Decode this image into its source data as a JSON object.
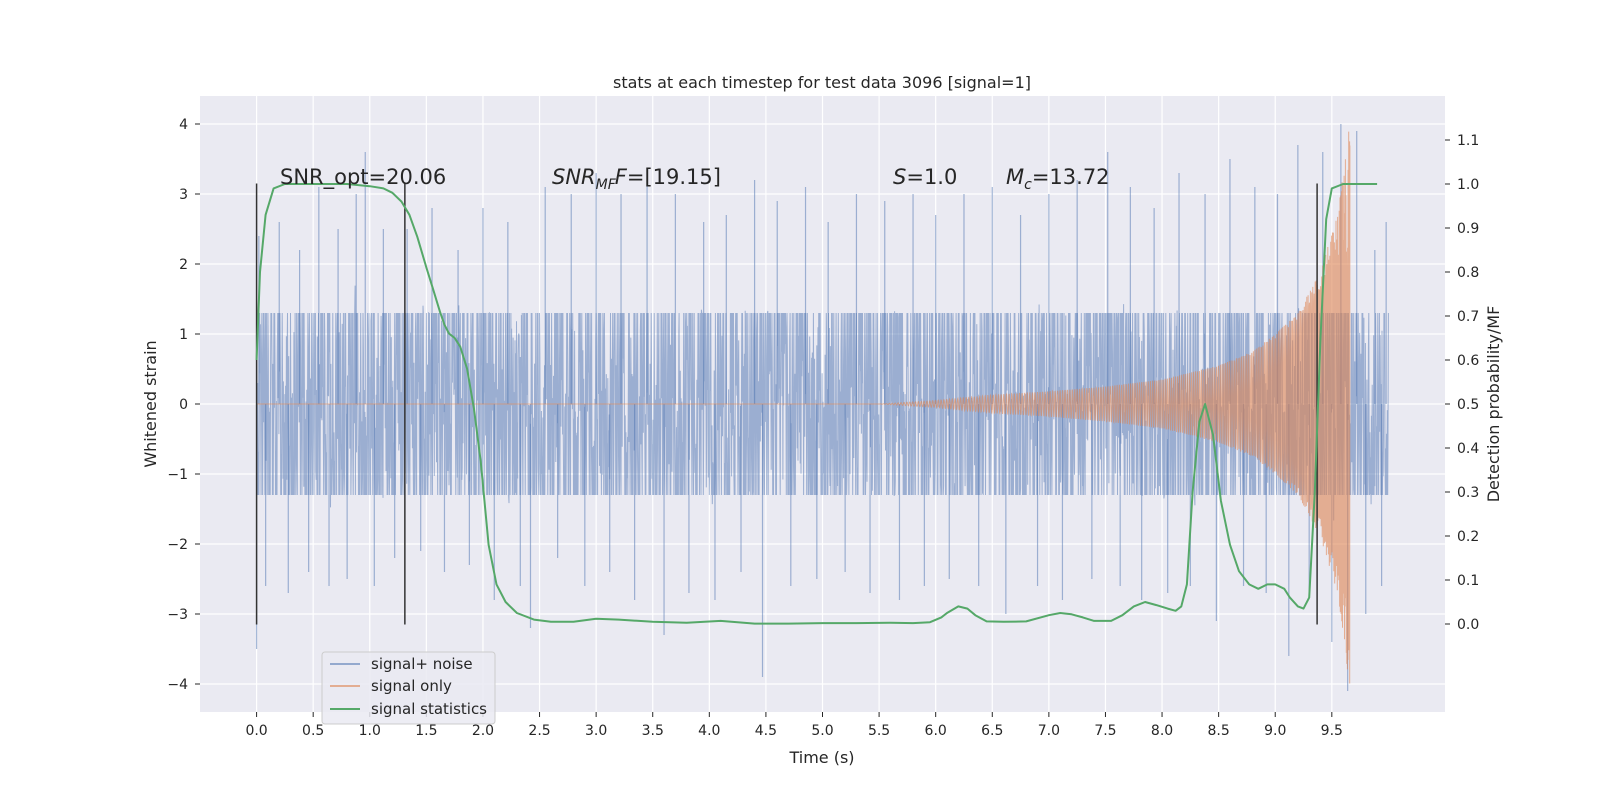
{
  "chart_data": {
    "type": "line",
    "title": "stats at each timestep for test data 3096 [signal=1]",
    "xlabel": "Time (s)",
    "ylabel": "Whitened strain",
    "ylabel_right": "Detection probability/MF",
    "xlim": [
      -0.5,
      10.5
    ],
    "ylim": [
      -4.4,
      4.4
    ],
    "ylim_right": [
      -0.2,
      1.2
    ],
    "xticks": [
      "0.0",
      "0.5",
      "1.0",
      "1.5",
      "2.0",
      "2.5",
      "3.0",
      "3.5",
      "4.0",
      "4.5",
      "5.0",
      "5.5",
      "6.0",
      "6.5",
      "7.0",
      "7.5",
      "8.0",
      "8.5",
      "9.0",
      "9.5"
    ],
    "yticks": [
      "4",
      "3",
      "2",
      "1",
      "0",
      "−1",
      "−2",
      "−3",
      "−4"
    ],
    "yticks_right": [
      "1.1",
      "1.0",
      "0.9",
      "0.8",
      "0.7",
      "0.6",
      "0.5",
      "0.4",
      "0.3",
      "0.2",
      "0.1",
      "0.0"
    ],
    "grid": true,
    "legend_position": "lower-left",
    "background": "#eaeaf2",
    "colors": {
      "noise": "#4c72b0",
      "signal": "#dd8452",
      "stats": "#55a868",
      "marker": "#333333"
    },
    "annotations": {
      "snr_opt": "SNR_opt=20.06",
      "snr_mf_main": "SNR",
      "snr_mf_sub": "MF",
      "snr_mf_rest": "=[19.15]",
      "s_main": "S",
      "s_rest": "=1.0",
      "mc_main": "M",
      "mc_sub": "c",
      "mc_rest": "=13.72"
    },
    "series": [
      {
        "name": "signal+ noise",
        "color": "#4c72b0",
        "note": "whitened strain spanning 0.0–10.0 s, amplitude mostly within ±1.3 with peaks up to ±4",
        "x_range": [
          0.0,
          10.0
        ],
        "envelope": [
          1.3,
          -1.3
        ],
        "peaks": [
          [
            0.0,
            -3.5
          ],
          [
            0.02,
            2.4
          ],
          [
            0.08,
            -2.6
          ],
          [
            0.2,
            2.6
          ],
          [
            0.28,
            -2.7
          ],
          [
            0.38,
            2.2
          ],
          [
            0.46,
            -2.4
          ],
          [
            0.55,
            3.1
          ],
          [
            0.64,
            -2.6
          ],
          [
            0.72,
            2.5
          ],
          [
            0.8,
            -2.5
          ],
          [
            0.88,
            3.0
          ],
          [
            0.96,
            3.6
          ],
          [
            1.04,
            -2.6
          ],
          [
            1.12,
            2.5
          ],
          [
            1.22,
            -2.2
          ],
          [
            1.33,
            2.5
          ],
          [
            1.45,
            -2.1
          ],
          [
            1.55,
            2.8
          ],
          [
            1.66,
            -2.4
          ],
          [
            1.78,
            2.2
          ],
          [
            1.88,
            -2.3
          ],
          [
            2.0,
            2.8
          ],
          [
            2.1,
            -2.8
          ],
          [
            2.22,
            2.6
          ],
          [
            2.33,
            -2.6
          ],
          [
            2.42,
            -3.2
          ],
          [
            2.55,
            3.1
          ],
          [
            2.66,
            -2.2
          ],
          [
            2.78,
            3.0
          ],
          [
            2.9,
            -2.6
          ],
          [
            3.0,
            3.3
          ],
          [
            3.12,
            -2.4
          ],
          [
            3.22,
            3.0
          ],
          [
            3.34,
            -2.8
          ],
          [
            3.45,
            3.2
          ],
          [
            3.6,
            -3.3
          ],
          [
            3.7,
            3.0
          ],
          [
            3.82,
            -2.7
          ],
          [
            3.95,
            2.6
          ],
          [
            4.05,
            -2.8
          ],
          [
            4.15,
            2.7
          ],
          [
            4.28,
            -2.4
          ],
          [
            4.4,
            3.2
          ],
          [
            4.47,
            -3.9
          ],
          [
            4.6,
            2.9
          ],
          [
            4.72,
            -2.6
          ],
          [
            4.85,
            3.1
          ],
          [
            4.95,
            -2.5
          ],
          [
            5.05,
            2.6
          ],
          [
            5.2,
            -2.4
          ],
          [
            5.3,
            3.0
          ],
          [
            5.42,
            -2.7
          ],
          [
            5.55,
            2.9
          ],
          [
            5.68,
            -2.8
          ],
          [
            5.8,
            3.0
          ],
          [
            5.9,
            -2.6
          ],
          [
            6.0,
            2.7
          ],
          [
            6.12,
            -2.5
          ],
          [
            6.25,
            3.0
          ],
          [
            6.38,
            -2.6
          ],
          [
            6.5,
            3.1
          ],
          [
            6.62,
            -3.0
          ],
          [
            6.75,
            2.7
          ],
          [
            6.9,
            -2.6
          ],
          [
            7.0,
            3.0
          ],
          [
            7.12,
            -2.8
          ],
          [
            7.25,
            3.2
          ],
          [
            7.38,
            -2.5
          ],
          [
            7.52,
            3.6
          ],
          [
            7.63,
            -2.6
          ],
          [
            7.72,
            3.1
          ],
          [
            7.82,
            -2.8
          ],
          [
            7.93,
            2.8
          ],
          [
            8.05,
            -2.7
          ],
          [
            8.15,
            3.3
          ],
          [
            8.25,
            -2.6
          ],
          [
            8.38,
            3.0
          ],
          [
            8.48,
            -3.1
          ],
          [
            8.6,
            3.5
          ],
          [
            8.72,
            -2.6
          ],
          [
            8.82,
            3.1
          ],
          [
            8.92,
            -2.7
          ],
          [
            9.02,
            3.0
          ],
          [
            9.12,
            -3.6
          ],
          [
            9.2,
            3.7
          ],
          [
            9.3,
            -2.7
          ],
          [
            9.42,
            3.6
          ],
          [
            9.5,
            -3.4
          ],
          [
            9.58,
            4.0
          ],
          [
            9.64,
            -4.1
          ],
          [
            9.72,
            3.9
          ],
          [
            9.8,
            -3.0
          ],
          [
            9.88,
            2.2
          ],
          [
            9.94,
            -2.6
          ],
          [
            9.98,
            2.6
          ]
        ]
      },
      {
        "name": "signal only",
        "color": "#dd8452",
        "note": "chirp waveform, amplitude growing from ~0 at 5.5 s to peak ~4 near 9.65 s, then ends",
        "x_range": [
          0.0,
          9.66
        ],
        "envelope": [
          [
            5.5,
            0.0
          ],
          [
            6.0,
            0.05
          ],
          [
            6.5,
            0.13
          ],
          [
            7.0,
            0.18
          ],
          [
            7.5,
            0.25
          ],
          [
            8.0,
            0.35
          ],
          [
            8.5,
            0.55
          ],
          [
            8.8,
            0.75
          ],
          [
            9.0,
            1.0
          ],
          [
            9.2,
            1.3
          ],
          [
            9.4,
            1.9
          ],
          [
            9.55,
            2.7
          ],
          [
            9.62,
            3.5
          ],
          [
            9.65,
            4.0
          ]
        ]
      },
      {
        "name": "signal statistics",
        "color": "#55a868",
        "x": [
          0.0,
          0.03,
          0.08,
          0.15,
          0.25,
          0.4,
          0.6,
          0.8,
          1.0,
          1.12,
          1.2,
          1.28,
          1.35,
          1.42,
          1.5,
          1.56,
          1.62,
          1.66,
          1.7,
          1.75,
          1.8,
          1.86,
          1.92,
          1.98,
          2.05,
          2.12,
          2.2,
          2.3,
          2.45,
          2.6,
          2.8,
          3.0,
          3.2,
          3.5,
          3.8,
          4.1,
          4.4,
          4.7,
          5.0,
          5.3,
          5.6,
          5.8,
          5.95,
          6.05,
          6.1,
          6.2,
          6.28,
          6.35,
          6.45,
          6.6,
          6.8,
          7.0,
          7.1,
          7.2,
          7.3,
          7.4,
          7.55,
          7.65,
          7.75,
          7.85,
          7.95,
          8.05,
          8.12,
          8.17,
          8.22,
          8.27,
          8.33,
          8.38,
          8.45,
          8.52,
          8.6,
          8.68,
          8.77,
          8.85,
          8.93,
          9.0,
          9.08,
          9.13,
          9.2,
          9.25,
          9.3,
          9.35,
          9.4,
          9.45,
          9.5,
          9.6,
          9.7,
          9.8,
          9.9
        ],
        "y": [
          0.6,
          0.8,
          0.93,
          0.99,
          1.0,
          1.0,
          1.0,
          1.0,
          0.995,
          0.99,
          0.98,
          0.96,
          0.93,
          0.88,
          0.81,
          0.76,
          0.71,
          0.68,
          0.66,
          0.65,
          0.63,
          0.58,
          0.49,
          0.37,
          0.18,
          0.09,
          0.05,
          0.025,
          0.01,
          0.005,
          0.005,
          0.012,
          0.01,
          0.005,
          0.003,
          0.007,
          0.001,
          0.001,
          0.002,
          0.002,
          0.003,
          0.002,
          0.004,
          0.015,
          0.025,
          0.04,
          0.035,
          0.02,
          0.006,
          0.005,
          0.006,
          0.02,
          0.025,
          0.022,
          0.015,
          0.007,
          0.007,
          0.02,
          0.04,
          0.05,
          0.043,
          0.035,
          0.03,
          0.04,
          0.09,
          0.3,
          0.46,
          0.5,
          0.43,
          0.28,
          0.18,
          0.12,
          0.09,
          0.08,
          0.09,
          0.09,
          0.08,
          0.06,
          0.04,
          0.035,
          0.06,
          0.3,
          0.65,
          0.92,
          0.99,
          1.0,
          1.0,
          1.0,
          1.0
        ]
      }
    ],
    "vertical_lines": [
      {
        "x": 0.0,
        "y1": -3.15,
        "y2": 3.15
      },
      {
        "x": 1.31,
        "y1": -3.15,
        "y2": 3.15
      },
      {
        "x": 9.37,
        "y1": -3.15,
        "y2": 3.15
      }
    ]
  }
}
